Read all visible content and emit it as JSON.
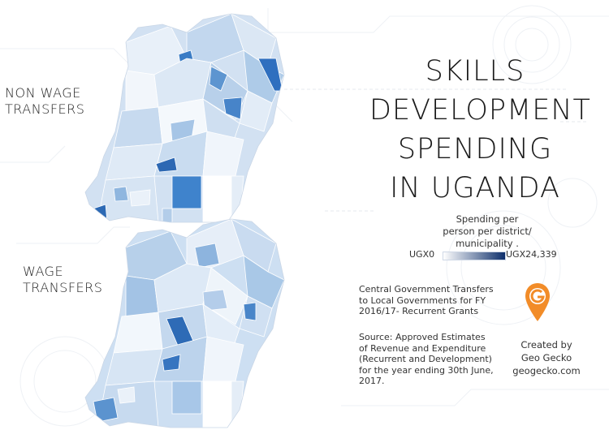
{
  "title": {
    "line1": "SKILLS",
    "line2": "DEVELOPMENT",
    "line3": "SPENDING",
    "line4": "IN UGANDA"
  },
  "maps": {
    "non_wage": {
      "line1": "NON WAGE",
      "line2": "TRANSFERS"
    },
    "wage": {
      "line1": "WAGE",
      "line2": "TRANSFERS"
    }
  },
  "legend": {
    "caption1": "Spending per",
    "caption2": "person per district/",
    "caption3": "municipality .",
    "min_label": "UGX0",
    "max_label": "UGX24,339",
    "color_low": "#ffffff",
    "color_high": "#0d2f6b"
  },
  "info": {
    "desc1": "Central Government Transfers",
    "desc2": "to Local Governments for FY",
    "desc3": "2016/17- Recurrent Grants",
    "src1": "Source: Approved Estimates",
    "src2": "of Revenue and Expenditure",
    "src3": "(Recurrent and Development)",
    "src4": "for the year ending 30th June,",
    "src5": "2017."
  },
  "credit": {
    "line1": "Created by",
    "line2": "Geo Gecko",
    "line3": "geogecko.com",
    "logo_color": "#f28c28"
  }
}
